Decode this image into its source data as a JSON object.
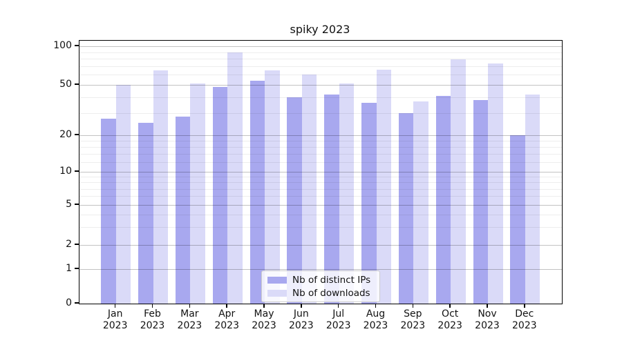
{
  "title": "spiky 2023",
  "chart_data": {
    "type": "bar",
    "title": "spiky 2023",
    "categories": [
      "Jan",
      "Feb",
      "Mar",
      "Apr",
      "May",
      "Jun",
      "Jul",
      "Aug",
      "Sep",
      "Oct",
      "Nov",
      "Dec"
    ],
    "year_label": "2023",
    "series": [
      {
        "name": "Nb of distinct IPs",
        "color": "#a8a8ef",
        "values": [
          27,
          25,
          28,
          48,
          54,
          40,
          42,
          36,
          30,
          41,
          38,
          20
        ]
      },
      {
        "name": "Nb of downloads",
        "color": "#dadaf8",
        "values": [
          50,
          65,
          51,
          89,
          65,
          60,
          51,
          66,
          37,
          79,
          73,
          42
        ]
      }
    ],
    "yscale": "symlog-like",
    "y_tick_values": [
      0,
      1,
      2,
      5,
      10,
      20,
      50,
      100
    ],
    "y_tick_labels": [
      "0",
      "1",
      "2",
      "5",
      "10",
      "20",
      "50",
      "100"
    ],
    "y_minor_tick_values": [
      3,
      4,
      6,
      7,
      8,
      9,
      12,
      14,
      16,
      18,
      30,
      40,
      60,
      70,
      80,
      90
    ],
    "ylim": [
      0,
      110
    ],
    "grid": true,
    "legend_position": "lower center"
  },
  "legend": {
    "items": [
      {
        "label": "Nb of distinct IPs"
      },
      {
        "label": "Nb of downloads"
      }
    ]
  }
}
